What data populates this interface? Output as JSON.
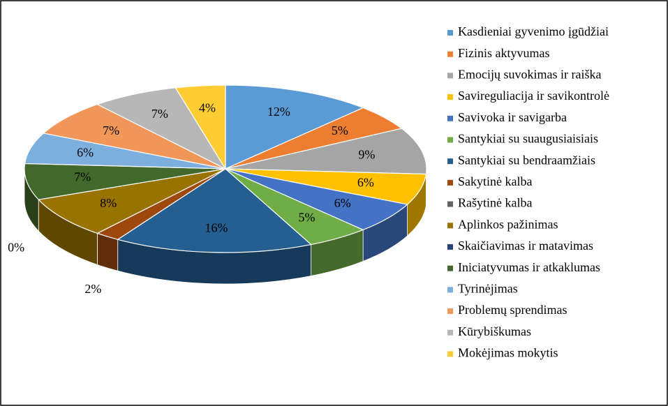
{
  "chart_data": {
    "type": "pie3d",
    "categories": [
      "Kasdieniai gyvenimo įgūdžiai",
      "Fizinis aktyvumas",
      "Emocijų suvokimas ir raiška",
      "Savireguliacija ir savikontrolė",
      "Savivoka ir savigarba",
      "Santykiai su suaugusiaisiais",
      "Santykiai su bendraamžiais",
      "Sakytinė kalba",
      "Rašytinė kalba",
      "Aplinkos pažinimas",
      "Skaičiavimas ir matavimas",
      "Iniciatyvumas ir atkaklumas",
      "Tyrinėjimas",
      "Problemų sprendimas",
      "Kūrybiškumas",
      "Mokėjimas mokytis"
    ],
    "values": [
      12,
      5,
      9,
      6,
      6,
      5,
      16,
      2,
      0,
      8,
      0,
      7,
      6,
      7,
      7,
      4
    ],
    "value_labels": [
      "12%",
      "5%",
      "9%",
      "6%",
      "6%",
      "5%",
      "16%",
      "2%",
      null,
      "8%",
      "0%",
      "7%",
      "6%",
      "7%",
      "7%",
      "4%"
    ],
    "colors": [
      "#5b9bd5",
      "#ed7d31",
      "#a5a5a5",
      "#ffc000",
      "#4472c4",
      "#70ad47",
      "#255e91",
      "#9e480e",
      "#636363",
      "#997300",
      "#264478",
      "#43682b",
      "#7cafdd",
      "#f1975a",
      "#b7b7b7",
      "#ffcd33"
    ],
    "legend": "right"
  }
}
